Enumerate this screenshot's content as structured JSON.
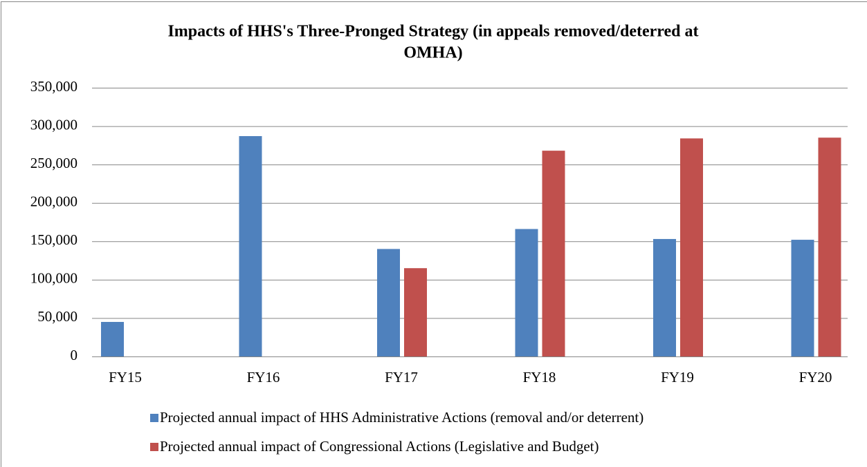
{
  "chart_data": {
    "type": "bar",
    "title": "Impacts of HHS's Three-Pronged Strategy (in appeals removed/deterred at",
    "title_line2": "OMHA)",
    "categories": [
      "FY15",
      "FY16",
      "FY17",
      "FY18",
      "FY19",
      "FY20"
    ],
    "series": [
      {
        "name": "Projected annual impact of HHS Administrative Actions (removal and/or deterrent)",
        "color": "#4f81bd",
        "values": [
          45000,
          287000,
          140000,
          166000,
          153000,
          152000
        ]
      },
      {
        "name": "Projected annual impact of Congressional Actions (Legislative and Budget)",
        "color": "#c0504d",
        "values": [
          null,
          null,
          115000,
          268000,
          284000,
          285000
        ]
      }
    ],
    "ylim": [
      0,
      350000
    ],
    "yticks": [
      0,
      {
        "value": 50000,
        "label": "50,000"
      },
      {
        "value": 100000,
        "label": "100,000"
      },
      {
        "value": 150000,
        "label": "150,000"
      },
      {
        "value": 200000,
        "label": "200,000"
      },
      {
        "value": 250000,
        "label": "250,000"
      },
      {
        "value": 300000,
        "label": "300,000"
      },
      {
        "value": 350000,
        "label": "350,000"
      }
    ],
    "grid": true,
    "legend": "bottom"
  }
}
